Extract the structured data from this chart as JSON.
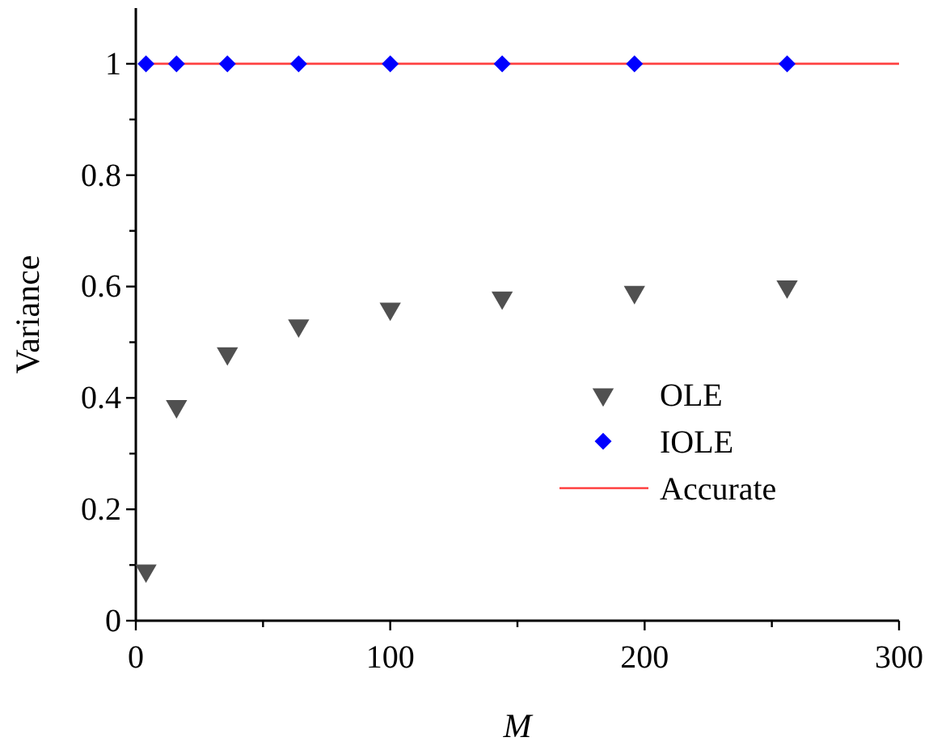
{
  "chart_data": {
    "type": "scatter",
    "xlabel": "M",
    "ylabel": "Variance",
    "xlim": [
      0,
      300
    ],
    "xticks": [
      0,
      {
        "value": 50,
        "label": null
      },
      100,
      {
        "value": 150,
        "label": null
      },
      200,
      {
        "value": 250,
        "label": null
      },
      300
    ],
    "ylim": [
      0,
      1.1
    ],
    "yticks": [
      0,
      {
        "value": 0.1,
        "label": null
      },
      0.2,
      {
        "value": 0.3,
        "label": null
      },
      0.4,
      {
        "value": 0.5,
        "label": null
      },
      0.6,
      {
        "value": 0.7,
        "label": null
      },
      0.8,
      {
        "value": 0.9,
        "label": null
      },
      1
    ],
    "grid": false,
    "legend": "right",
    "series": [
      {
        "name": "OLE",
        "marker": "triangle",
        "color": "#505050",
        "x": [
          4,
          16,
          36,
          64,
          100,
          144,
          196,
          256
        ],
        "values": [
          0.09,
          0.385,
          0.48,
          0.53,
          0.56,
          0.58,
          0.59,
          0.6
        ]
      },
      {
        "name": "IOLE",
        "marker": "diamond",
        "color": "#0000ff",
        "x": [
          4,
          16,
          36,
          64,
          100,
          144,
          196,
          256
        ],
        "values": [
          1,
          1,
          1,
          1,
          1,
          1,
          1,
          1
        ]
      },
      {
        "name": "Accurate",
        "type": "line",
        "marker": "none",
        "color": "#ff4040",
        "x": [
          4,
          300
        ],
        "values": [
          1,
          1
        ]
      }
    ]
  }
}
